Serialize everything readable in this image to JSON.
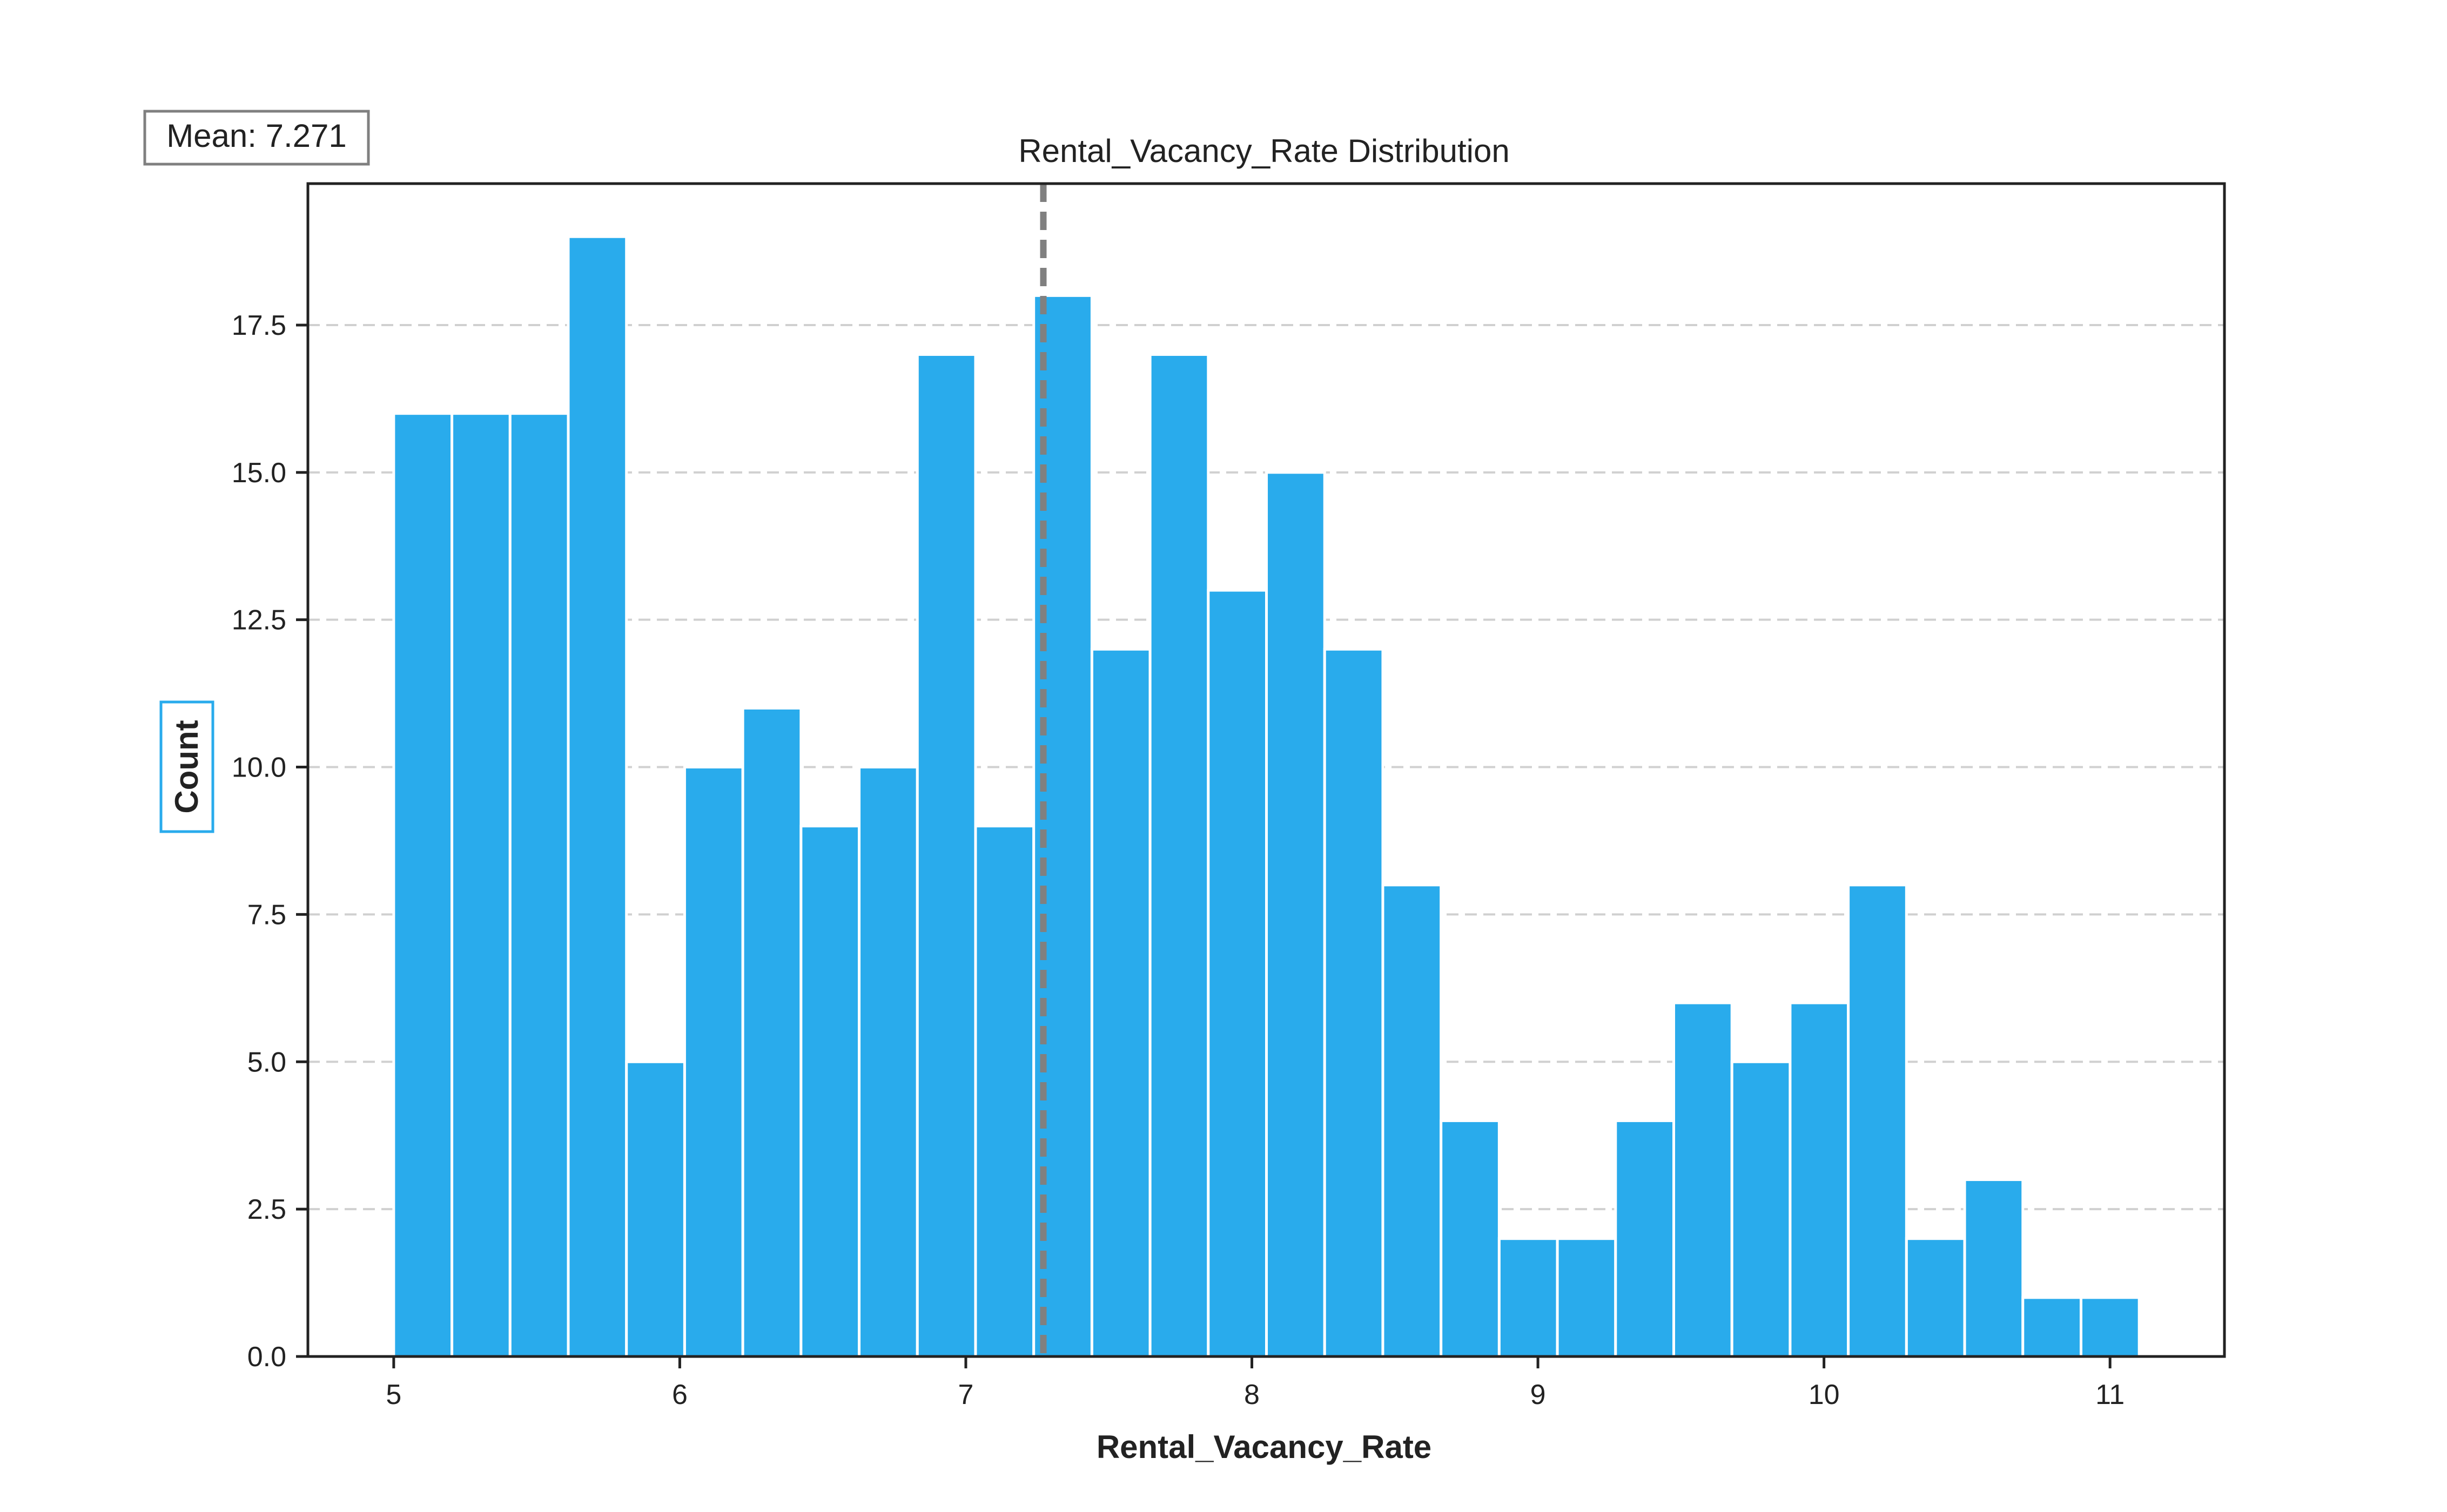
{
  "chart_data": {
    "type": "bar",
    "title": "Rental_Vacancy_Rate Distribution",
    "xlabel": "Rental_Vacancy_Rate",
    "ylabel": "Count",
    "xlim": [
      4.7,
      11.4
    ],
    "ylim": [
      0,
      19.9
    ],
    "xticks": [
      "5",
      "6",
      "7",
      "8",
      "9",
      "10",
      "11"
    ],
    "yticks": [
      "0.0",
      "2.5",
      "5.0",
      "7.5",
      "10.0",
      "12.5",
      "15.0",
      "17.5"
    ],
    "grid": "y-dashed",
    "bin_start": 5.0,
    "bin_width": 0.2034,
    "values": [
      16,
      16,
      16,
      19,
      5,
      10,
      11,
      9,
      10,
      17,
      9,
      18,
      12,
      17,
      13,
      15,
      12,
      8,
      4,
      2,
      2,
      4,
      6,
      5,
      6,
      8,
      2,
      3,
      1,
      1
    ],
    "mean_value": 7.271,
    "mean_label": "Mean: 7.271",
    "colors": {
      "bar": "#29abec",
      "mean_line": "#808080",
      "ylabel_box": "#29abec",
      "grid": "#d0d0d0"
    }
  }
}
